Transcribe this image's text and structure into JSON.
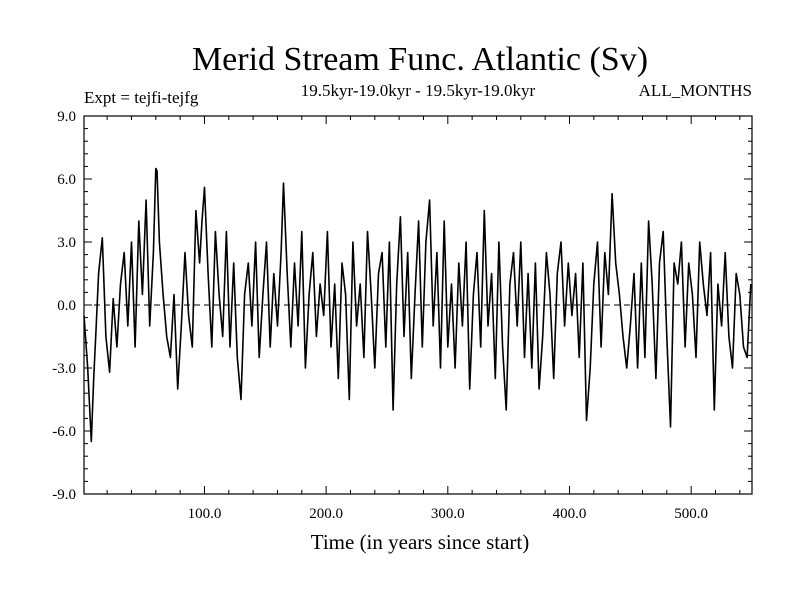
{
  "chart_data": {
    "type": "line",
    "title": "Merid Stream Func. Atlantic (Sv)",
    "left_label": "Expt = tejfi-tejfg",
    "center_label": "19.5kyr-19.0kyr - 19.5kyr-19.0kyr",
    "right_label": "ALL_MONTHS",
    "xlabel": "Time (in years since start)",
    "ylabel": "",
    "xlim": [
      1,
      550
    ],
    "ylim": [
      -9.0,
      9.0
    ],
    "xticks": [
      100,
      200,
      300,
      400,
      500
    ],
    "xtick_labels": [
      "100.0",
      "200.0",
      "300.0",
      "400.0",
      "500.0"
    ],
    "yticks": [
      -9,
      -6,
      -3,
      0,
      3,
      6,
      9
    ],
    "ytick_labels": [
      "-9.0",
      "-6.0",
      "-3.0",
      "0.0",
      "3.0",
      "6.0",
      "9.0"
    ],
    "reference_line": 0.0,
    "series": [
      {
        "name": "Merid Stream Func. Atlantic",
        "x": [
          1,
          4,
          7,
          9,
          11,
          13,
          16,
          19,
          22,
          25,
          28,
          31,
          34,
          37,
          40,
          43,
          46,
          49,
          52,
          55,
          58,
          60,
          61,
          63,
          66,
          69,
          72,
          75,
          78,
          81,
          84,
          87,
          90,
          93,
          96,
          98,
          100,
          103,
          106,
          109,
          112,
          115,
          118,
          121,
          124,
          127,
          130,
          133,
          136,
          139,
          142,
          145,
          148,
          151,
          154,
          157,
          160,
          163,
          165,
          168,
          171,
          174,
          177,
          180,
          183,
          186,
          189,
          192,
          195,
          198,
          201,
          204,
          207,
          210,
          213,
          216,
          219,
          222,
          225,
          228,
          231,
          234,
          237,
          240,
          243,
          246,
          249,
          252,
          255,
          258,
          261,
          264,
          267,
          270,
          273,
          276,
          279,
          282,
          285,
          288,
          291,
          294,
          297,
          300,
          303,
          306,
          309,
          312,
          315,
          318,
          321,
          324,
          327,
          330,
          333,
          336,
          339,
          342,
          345,
          348,
          351,
          354,
          357,
          360,
          363,
          366,
          369,
          372,
          375,
          378,
          381,
          384,
          387,
          390,
          393,
          396,
          399,
          402,
          405,
          408,
          411,
          414,
          417,
          420,
          423,
          426,
          429,
          432,
          435,
          438,
          441,
          444,
          447,
          450,
          453,
          456,
          459,
          462,
          465,
          468,
          471,
          474,
          477,
          480,
          483,
          486,
          489,
          492,
          495,
          498,
          501,
          504,
          507,
          510,
          513,
          516,
          519,
          522,
          525,
          528,
          531,
          534,
          537,
          540,
          543,
          546,
          549
        ],
        "y": [
          -0.5,
          -3.0,
          -6.5,
          -3.5,
          -1.0,
          1.5,
          3.2,
          -1.5,
          -3.2,
          0.3,
          -2.0,
          1.0,
          2.5,
          -1.0,
          3.0,
          -2.0,
          4.0,
          0.5,
          5.0,
          -1.0,
          2.5,
          6.5,
          6.4,
          3.0,
          0.5,
          -1.5,
          -2.5,
          0.5,
          -4.0,
          -1.0,
          2.5,
          -0.5,
          -2.0,
          4.5,
          2.0,
          4.0,
          5.6,
          1.5,
          -2.0,
          3.5,
          0.5,
          -1.5,
          3.5,
          -2.0,
          2.0,
          -2.5,
          -4.5,
          0.5,
          2.0,
          -1.0,
          3.0,
          -2.5,
          0.5,
          3.0,
          -2.0,
          1.5,
          -1.0,
          2.5,
          5.8,
          1.5,
          -2.0,
          2.0,
          -1.0,
          3.5,
          -3.0,
          0.5,
          2.5,
          -1.5,
          1.0,
          -0.5,
          3.5,
          -2.0,
          1.0,
          -3.5,
          2.0,
          0.5,
          -4.5,
          3.0,
          -1.0,
          1.0,
          -2.5,
          3.5,
          0.5,
          -3.0,
          1.5,
          2.5,
          -2.0,
          3.0,
          -5.0,
          1.0,
          4.2,
          -1.5,
          2.5,
          -3.5,
          0.5,
          4.0,
          -2.0,
          3.0,
          5.0,
          -1.0,
          2.5,
          -3.0,
          4.0,
          -2.0,
          1.0,
          -3.0,
          2.0,
          -1.0,
          3.0,
          -4.0,
          0.5,
          2.5,
          -2.0,
          4.5,
          -1.0,
          1.5,
          -3.5,
          3.0,
          -2.0,
          -5.0,
          1.0,
          2.5,
          -1.0,
          3.0,
          -2.5,
          1.5,
          -3.0,
          2.0,
          -4.0,
          -1.5,
          2.5,
          0.5,
          -3.5,
          1.5,
          3.0,
          -1.0,
          2.0,
          -0.5,
          1.5,
          -2.5,
          2.0,
          -5.5,
          -3.0,
          1.0,
          3.0,
          -2.0,
          2.5,
          0.5,
          5.3,
          2.0,
          0.5,
          -1.5,
          -3.0,
          -1.0,
          1.5,
          -3.0,
          2.0,
          -2.5,
          4.0,
          1.0,
          -3.5,
          2.0,
          3.5,
          -1.5,
          -5.8,
          2.0,
          1.0,
          3.0,
          -2.0,
          2.0,
          0.5,
          -2.5,
          3.0,
          1.0,
          -0.5,
          2.5,
          -5.0,
          1.0,
          -1.0,
          2.5,
          -1.5,
          -3.0,
          1.5,
          0.5,
          -2.0,
          -2.5,
          1.0
        ]
      }
    ]
  }
}
